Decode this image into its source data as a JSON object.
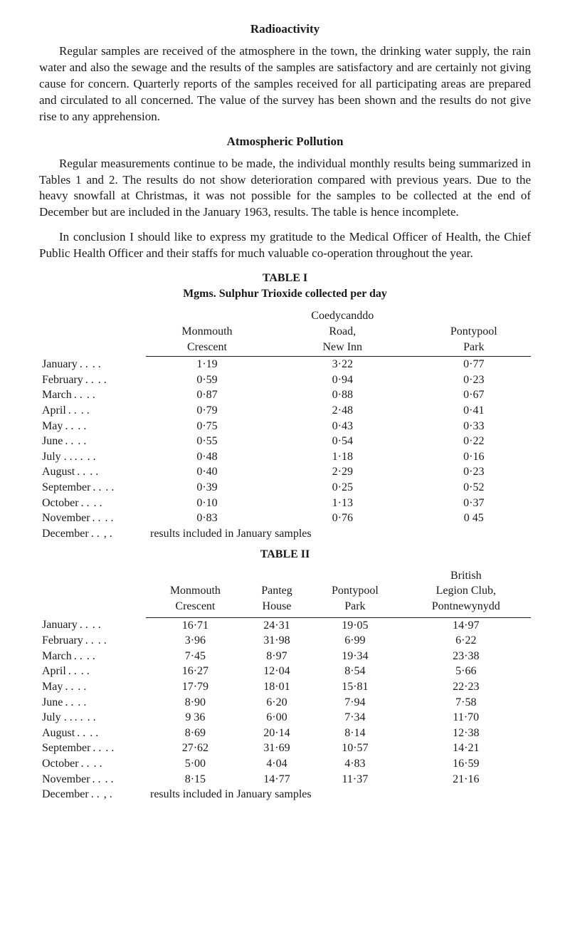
{
  "fonts": {
    "body_family": "Times New Roman",
    "body_size_pt": 13,
    "heading_size_pt": 13,
    "heading_weight": "bold"
  },
  "colors": {
    "text": "#1a1a1a",
    "background": "#ffffff",
    "rule": "#1a1a1a"
  },
  "section1": {
    "heading": "Radioactivity",
    "para": "Regular samples are received of the atmosphere in the town, the drinking water supply, the rain water and also the sewage and the results of the samples are satisfactory and are certainly not giving cause for concern. Quarterly reports of the samples received for all participating areas are prepared and circulated to all concerned. The value of the survey has been shown and the results do not give rise to any apprehension."
  },
  "section2": {
    "heading": "Atmospheric Pollution",
    "para1": "Regular measurements continue to be made, the individual monthly results being summarized in Tables 1 and 2. The results do not show deterioration compared with previous years. Due to the heavy snowfall at Christmas, it was not possible for the samples to be collected at the end of December but are included in the January 1963, results. The table is hence incomplete.",
    "para2": "In conclusion I should like to express my gratitude to the Medical Officer of Health, the Chief Public Health Officer and their staffs for much valuable co-operation throughout the year."
  },
  "table1": {
    "label": "TABLE I",
    "caption": "Mgms. Sulphur Trioxide collected per day",
    "columns": [
      "Monmouth Crescent",
      "Coedycanddo Road, New Inn",
      "Pontypool Park"
    ],
    "col_split": {
      "0": [
        "Monmouth",
        "Crescent"
      ],
      "1": [
        "Coedycanddo",
        "Road,",
        "New Inn"
      ],
      "2": [
        "Pontypool",
        "Park"
      ]
    },
    "rows": [
      {
        "label": "January",
        "v": [
          "1·19",
          "3·22",
          "0·77"
        ]
      },
      {
        "label": "February",
        "v": [
          "0·59",
          "0·94",
          "0·23"
        ]
      },
      {
        "label": "March",
        "v": [
          "0·87",
          "0·88",
          "0·67"
        ]
      },
      {
        "label": "April",
        "v": [
          "0·79",
          "2·48",
          "0·41"
        ]
      },
      {
        "label": "May",
        "v": [
          "0·75",
          "0·43",
          "0·33"
        ]
      },
      {
        "label": "June",
        "v": [
          "0·55",
          "0·54",
          "0·22"
        ]
      },
      {
        "label": "July . .",
        "v": [
          "0·48",
          "1·18",
          "0·16"
        ]
      },
      {
        "label": "August",
        "v": [
          "0·40",
          "2·29",
          "0·23"
        ]
      },
      {
        "label": "September",
        "v": [
          "0·39",
          "0·25",
          "0·52"
        ]
      },
      {
        "label": "October",
        "v": [
          "0·10",
          "1·13",
          "0·37"
        ]
      },
      {
        "label": "November",
        "v": [
          "0·83",
          "0·76",
          "0 45"
        ]
      }
    ],
    "note_row": {
      "label": "December",
      "note": "results included in January samples"
    },
    "dots": ". ."
  },
  "table2": {
    "label": "TABLE II",
    "columns": [
      "Monmouth Crescent",
      "Panteg House",
      "Pontypool Park",
      "British Legion Club, Pontnewynydd"
    ],
    "col_split": {
      "0": [
        "Monmouth",
        "Crescent"
      ],
      "1": [
        "Panteg",
        "House"
      ],
      "2": [
        "Pontypool",
        "Park"
      ],
      "3": [
        "British",
        "Legion Club,",
        "Pontnewynydd"
      ]
    },
    "rows": [
      {
        "label": "January",
        "v": [
          "16·71",
          "24·31",
          "19·05",
          "14·97"
        ]
      },
      {
        "label": "February",
        "v": [
          "3·96",
          "31·98",
          "6·99",
          "6·22"
        ]
      },
      {
        "label": "March",
        "v": [
          "7·45",
          "8·97",
          "19·34",
          "23·38"
        ]
      },
      {
        "label": "April",
        "v": [
          "16·27",
          "12·04",
          "8·54",
          "5·66"
        ]
      },
      {
        "label": "May",
        "v": [
          "17·79",
          "18·01",
          "15·81",
          "22·23"
        ]
      },
      {
        "label": "June",
        "v": [
          "8·90",
          "6·20",
          "7·94",
          "7·58"
        ]
      },
      {
        "label": "July . .",
        "v": [
          "9 36",
          "6·00",
          "7·34",
          "11·70"
        ]
      },
      {
        "label": "August",
        "v": [
          "8·69",
          "20·14",
          "8·14",
          "12·38"
        ]
      },
      {
        "label": "September",
        "v": [
          "27·62",
          "31·69",
          "10·57",
          "14·21"
        ]
      },
      {
        "label": "October",
        "v": [
          "5·00",
          "4·04",
          "4·83",
          "16·59"
        ]
      },
      {
        "label": "November",
        "v": [
          "8·15",
          "14·77",
          "11·37",
          "21·16"
        ]
      }
    ],
    "note_row": {
      "label": "December",
      "note": "results included in January samples"
    },
    "dots": ". ."
  }
}
